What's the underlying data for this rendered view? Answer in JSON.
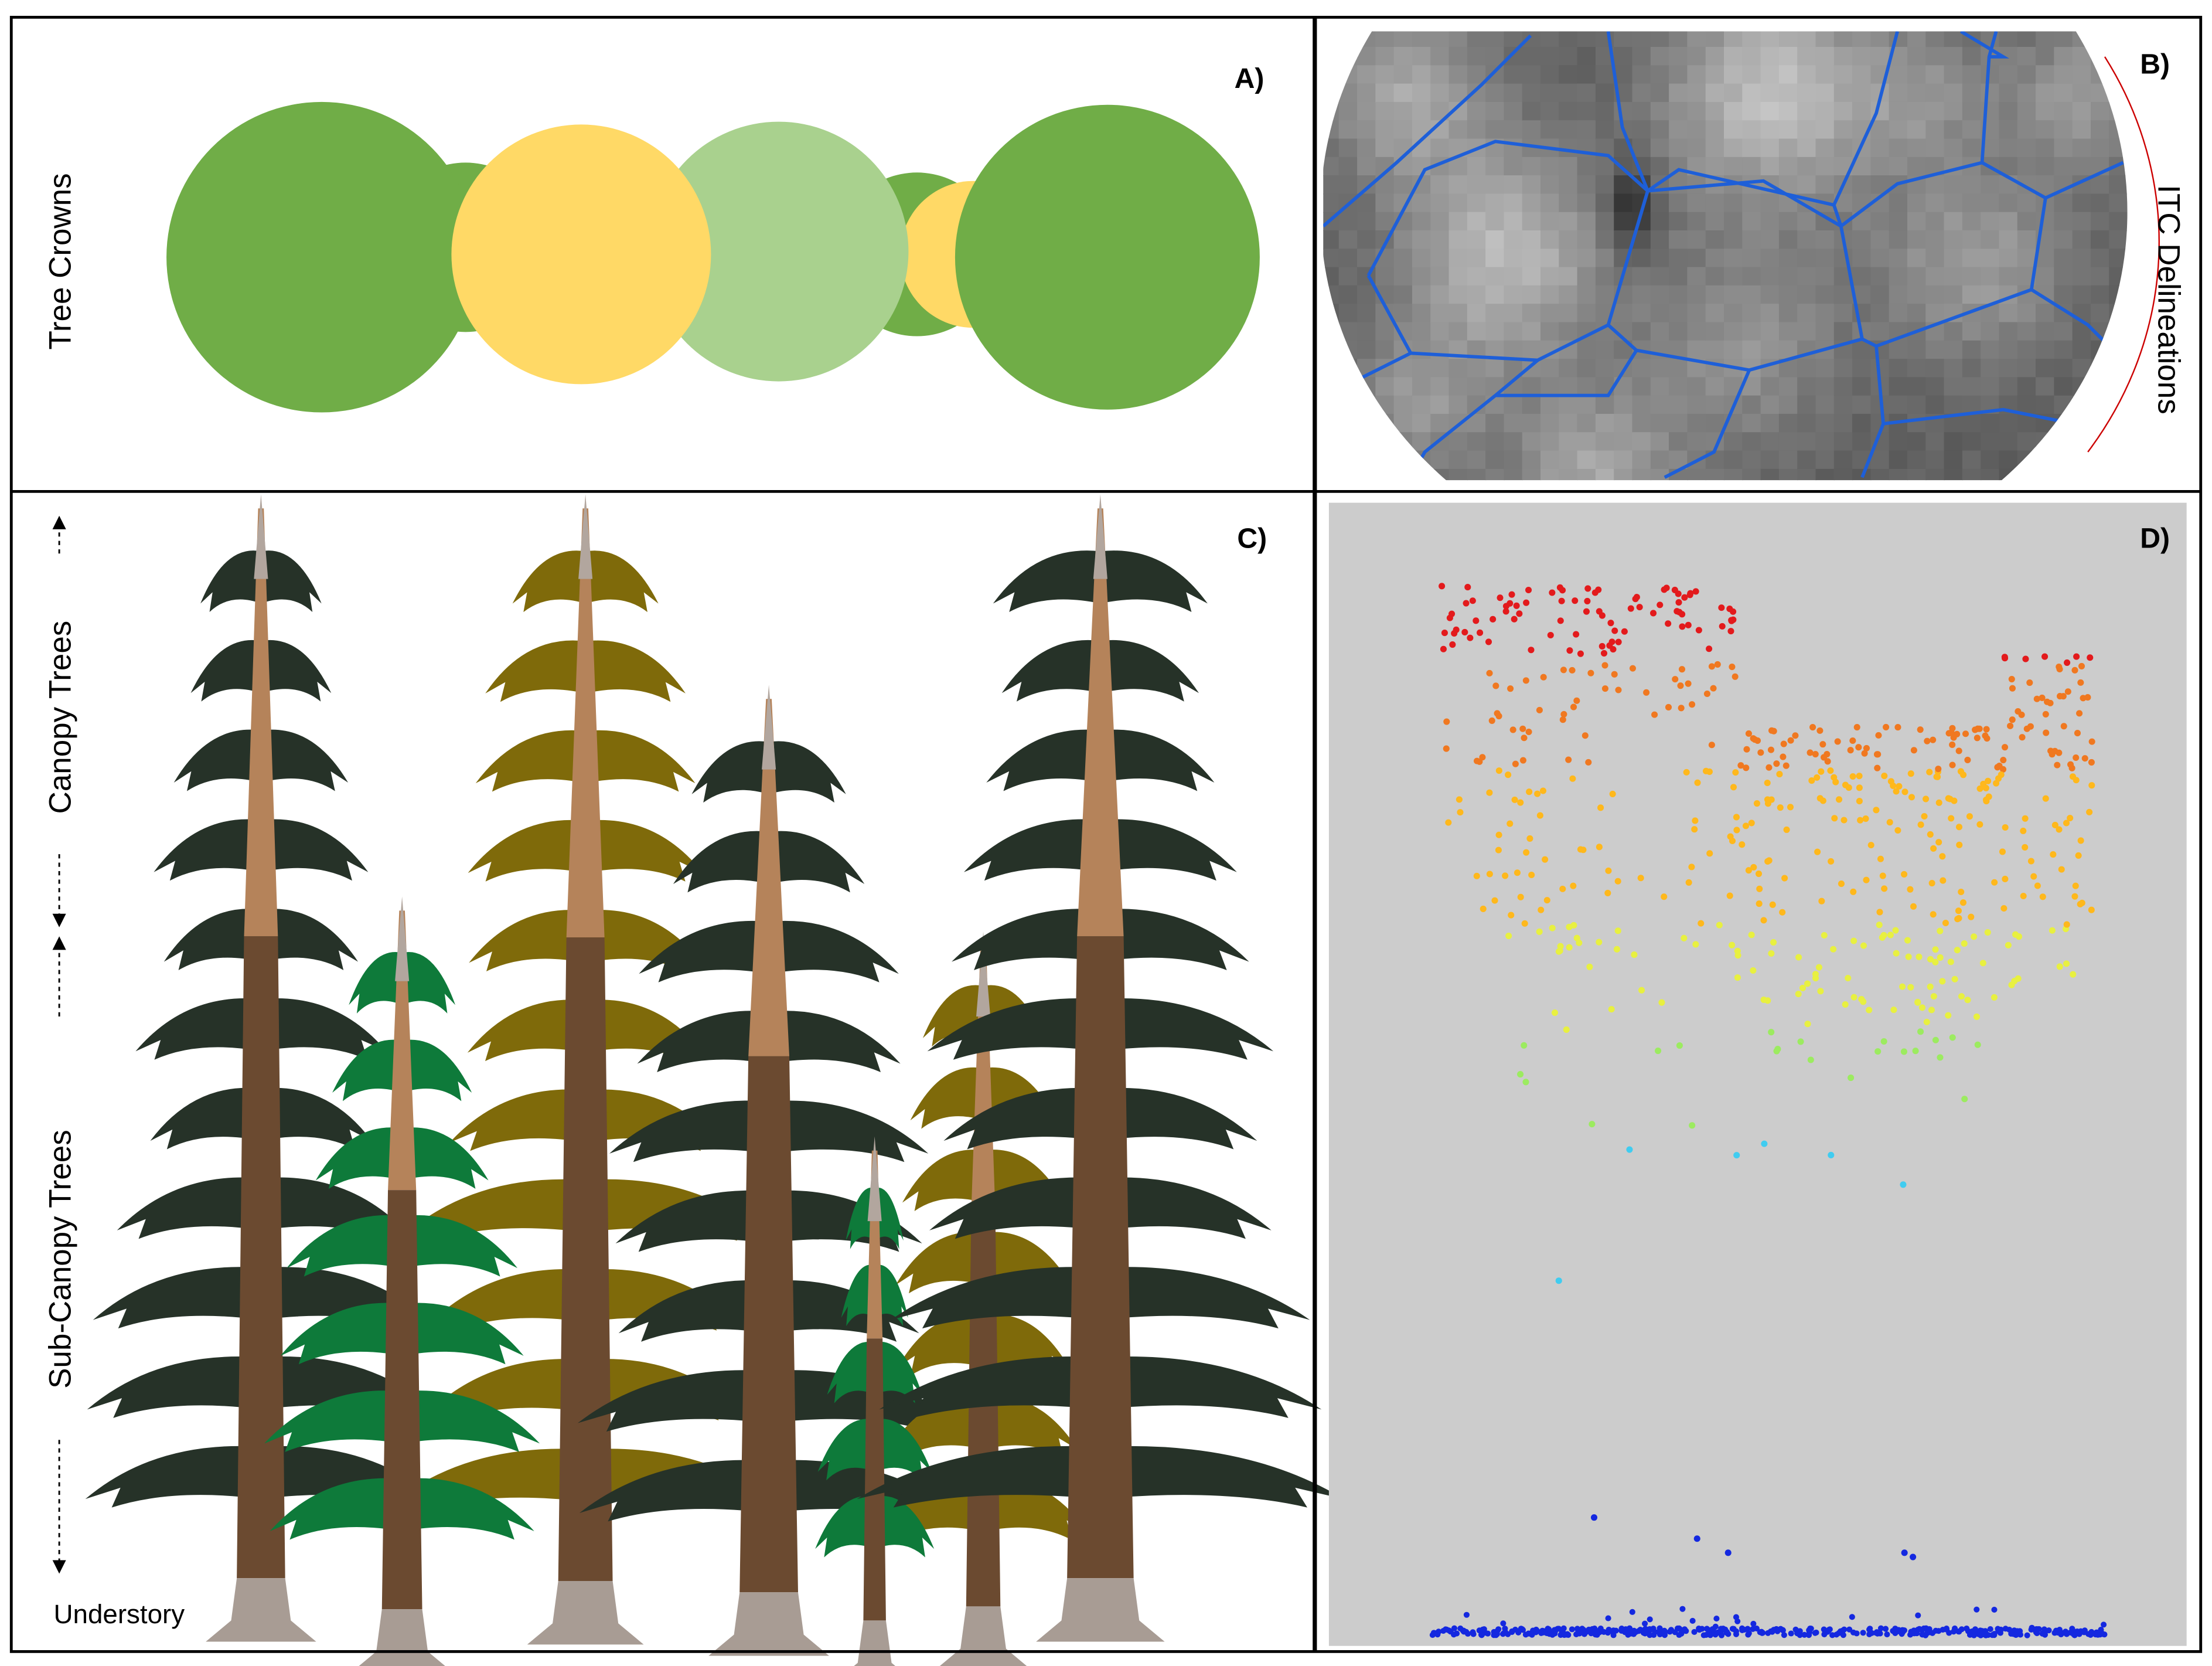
{
  "panels": [
    {
      "label": "A)",
      "caption": "Tree Crowns"
    },
    {
      "label": "B)",
      "caption": "ITC Delineations"
    },
    {
      "label": "C)",
      "annotations": [
        "Canopy Trees",
        "Sub-Canopy Trees",
        "Understory"
      ]
    },
    {
      "label": "D)"
    }
  ]
}
